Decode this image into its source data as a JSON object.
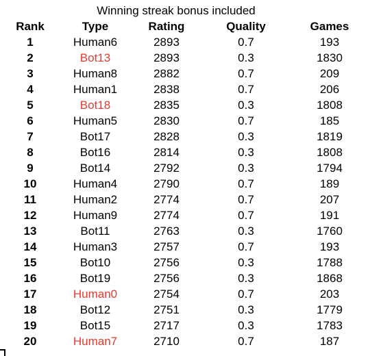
{
  "caption": "Winning streak bonus included",
  "highlight_color": "#e8382d",
  "text_color": "#000000",
  "columns": {
    "rank": "Rank",
    "type": "Type",
    "rating": "Rating",
    "quality": "Quality",
    "games": "Games"
  },
  "rows": [
    {
      "rank": "1",
      "type": "Human6",
      "rating": "2893",
      "quality": "0.7",
      "games": "193",
      "highlight": false
    },
    {
      "rank": "2",
      "type": "Bot13",
      "rating": "2893",
      "quality": "0.3",
      "games": "1830",
      "highlight": true
    },
    {
      "rank": "3",
      "type": "Human8",
      "rating": "2882",
      "quality": "0.7",
      "games": "209",
      "highlight": false
    },
    {
      "rank": "4",
      "type": "Human1",
      "rating": "2838",
      "quality": "0.7",
      "games": "206",
      "highlight": false
    },
    {
      "rank": "5",
      "type": "Bot18",
      "rating": "2835",
      "quality": "0.3",
      "games": "1808",
      "highlight": true
    },
    {
      "rank": "6",
      "type": "Human5",
      "rating": "2830",
      "quality": "0.7",
      "games": "185",
      "highlight": false
    },
    {
      "rank": "7",
      "type": "Bot17",
      "rating": "2828",
      "quality": "0.3",
      "games": "1819",
      "highlight": false
    },
    {
      "rank": "8",
      "type": "Bot16",
      "rating": "2814",
      "quality": "0.3",
      "games": "1808",
      "highlight": false
    },
    {
      "rank": "9",
      "type": "Bot14",
      "rating": "2792",
      "quality": "0.3",
      "games": "1794",
      "highlight": false
    },
    {
      "rank": "10",
      "type": "Human4",
      "rating": "2790",
      "quality": "0.7",
      "games": "189",
      "highlight": false
    },
    {
      "rank": "11",
      "type": "Human2",
      "rating": "2774",
      "quality": "0.7",
      "games": "207",
      "highlight": false
    },
    {
      "rank": "12",
      "type": "Human9",
      "rating": "2774",
      "quality": "0.7",
      "games": "191",
      "highlight": false
    },
    {
      "rank": "13",
      "type": "Bot11",
      "rating": "2763",
      "quality": "0.3",
      "games": "1760",
      "highlight": false
    },
    {
      "rank": "14",
      "type": "Human3",
      "rating": "2757",
      "quality": "0.7",
      "games": "193",
      "highlight": false
    },
    {
      "rank": "15",
      "type": "Bot10",
      "rating": "2756",
      "quality": "0.3",
      "games": "1788",
      "highlight": false
    },
    {
      "rank": "16",
      "type": "Bot19",
      "rating": "2756",
      "quality": "0.3",
      "games": "1868",
      "highlight": false
    },
    {
      "rank": "17",
      "type": "Human0",
      "rating": "2754",
      "quality": "0.7",
      "games": "203",
      "highlight": true
    },
    {
      "rank": "18",
      "type": "Bot12",
      "rating": "2751",
      "quality": "0.3",
      "games": "1779",
      "highlight": false
    },
    {
      "rank": "19",
      "type": "Bot15",
      "rating": "2717",
      "quality": "0.3",
      "games": "1783",
      "highlight": false
    },
    {
      "rank": "20",
      "type": "Human7",
      "rating": "2710",
      "quality": "0.7",
      "games": "187",
      "highlight": true
    }
  ]
}
